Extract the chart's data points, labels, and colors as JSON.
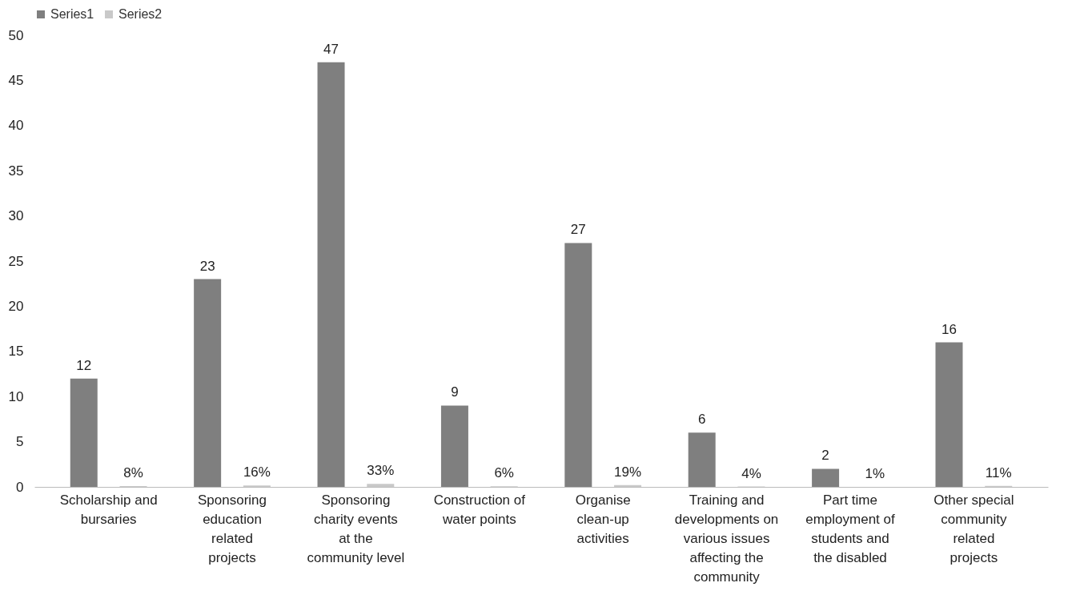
{
  "chart_data": {
    "type": "bar",
    "categories": [
      "Scholarship and bursaries",
      "Sponsoring education related projects",
      "Sponsoring charity events at the community level",
      "Construction of water points",
      "Organise clean-up activities",
      "Training and developments on various issues affecting the community",
      "Part time employment of students and the disabled",
      "Other special community related projects"
    ],
    "series": [
      {
        "name": "Series1",
        "color": "#7f7f7f",
        "values": [
          12,
          23,
          47,
          9,
          27,
          6,
          2,
          16
        ],
        "value_labels": [
          "12",
          "23",
          "47",
          "9",
          "27",
          "6",
          "2",
          "16"
        ]
      },
      {
        "name": "Series2",
        "color": "#c9c9c9",
        "values": [
          0.08,
          0.16,
          0.33,
          0.06,
          0.19,
          0.04,
          0.01,
          0.11
        ],
        "value_labels": [
          "8%",
          "16%",
          "33%",
          "6%",
          "19%",
          "4%",
          "1%",
          "11%"
        ]
      }
    ],
    "ylim": [
      0,
      50
    ],
    "yticks": [
      0,
      5,
      10,
      15,
      20,
      25,
      30,
      35,
      40,
      45,
      50
    ],
    "grid": false,
    "legend": "top"
  }
}
